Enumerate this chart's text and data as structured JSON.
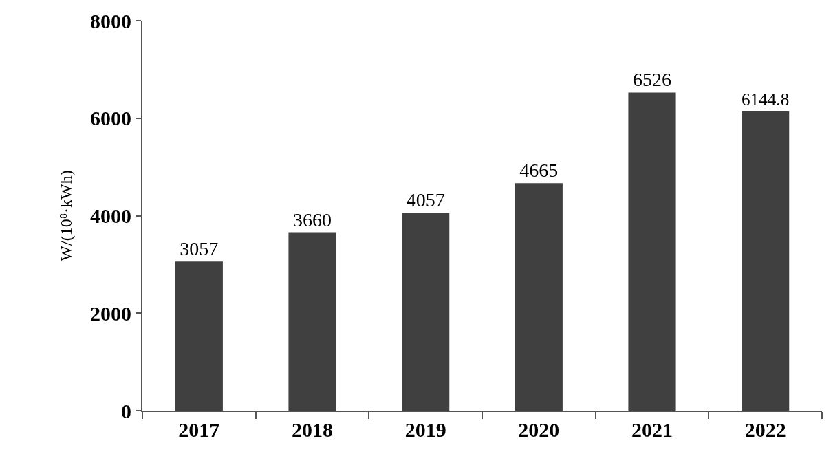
{
  "chart_data": {
    "type": "bar",
    "ylabel": "W/(10⁸·kWh)",
    "categories": [
      "2017",
      "2018",
      "2019",
      "2020",
      "2021",
      "2022"
    ],
    "values": [
      3057,
      3660,
      4057,
      4665,
      6526,
      6144.8
    ],
    "color": "#404040",
    "ylim": [
      0,
      8000
    ],
    "yticks": [
      0,
      2000,
      4000,
      6000,
      8000
    ],
    "grid": false,
    "legend": false,
    "data_labels": true
  }
}
